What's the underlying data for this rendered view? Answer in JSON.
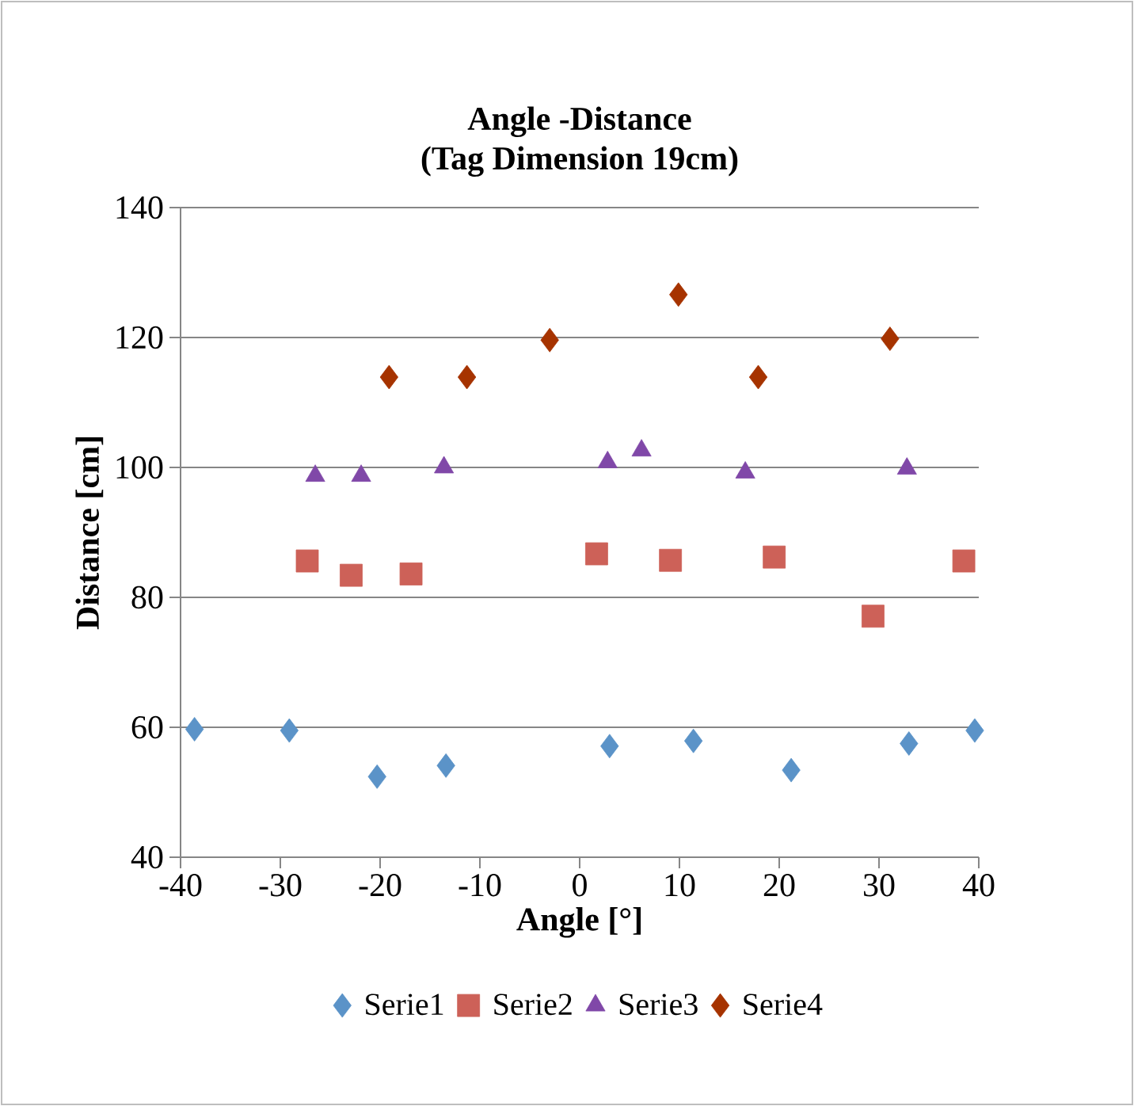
{
  "chart_data": {
    "type": "scatter",
    "title": "Angle -Distance\n(Tag Dimension 19cm)",
    "xlabel": "Angle [°]",
    "ylabel": "Distance [cm]",
    "xlim": [
      -40,
      40
    ],
    "ylim": [
      40,
      140
    ],
    "xticks": [
      -40,
      -30,
      -20,
      -10,
      0,
      10,
      20,
      30,
      40
    ],
    "yticks": [
      40,
      60,
      80,
      100,
      120,
      140
    ],
    "grid": "y",
    "legend": "bottom",
    "series": [
      {
        "name": "Serie1",
        "color": "#5b93c8",
        "marker": "diamond",
        "x": [
          -38.6,
          -29.1,
          -20.3,
          -13.4,
          3.0,
          11.4,
          21.2,
          33.0,
          39.6
        ],
        "values": [
          59.7,
          59.5,
          52.4,
          54.1,
          57.1,
          57.9,
          53.4,
          57.5,
          59.5
        ]
      },
      {
        "name": "Serie2",
        "color": "#cd6158",
        "marker": "square",
        "x": [
          -27.3,
          -22.9,
          -16.9,
          1.7,
          9.1,
          19.5,
          29.4,
          38.5
        ],
        "values": [
          85.6,
          83.4,
          83.6,
          86.7,
          85.7,
          86.2,
          77.1,
          85.6
        ]
      },
      {
        "name": "Serie3",
        "color": "#8048a8",
        "marker": "triangle",
        "x": [
          -26.5,
          -21.9,
          -13.6,
          2.8,
          6.2,
          16.6,
          32.8
        ],
        "values": [
          98.7,
          98.7,
          100.0,
          100.8,
          102.6,
          99.2,
          99.8
        ]
      },
      {
        "name": "Serie4",
        "color": "#a63300",
        "marker": "diamond",
        "x": [
          -19.1,
          -11.3,
          -3.0,
          9.9,
          17.9,
          31.1
        ],
        "values": [
          113.9,
          113.9,
          119.6,
          126.6,
          113.9,
          119.8
        ]
      }
    ]
  }
}
